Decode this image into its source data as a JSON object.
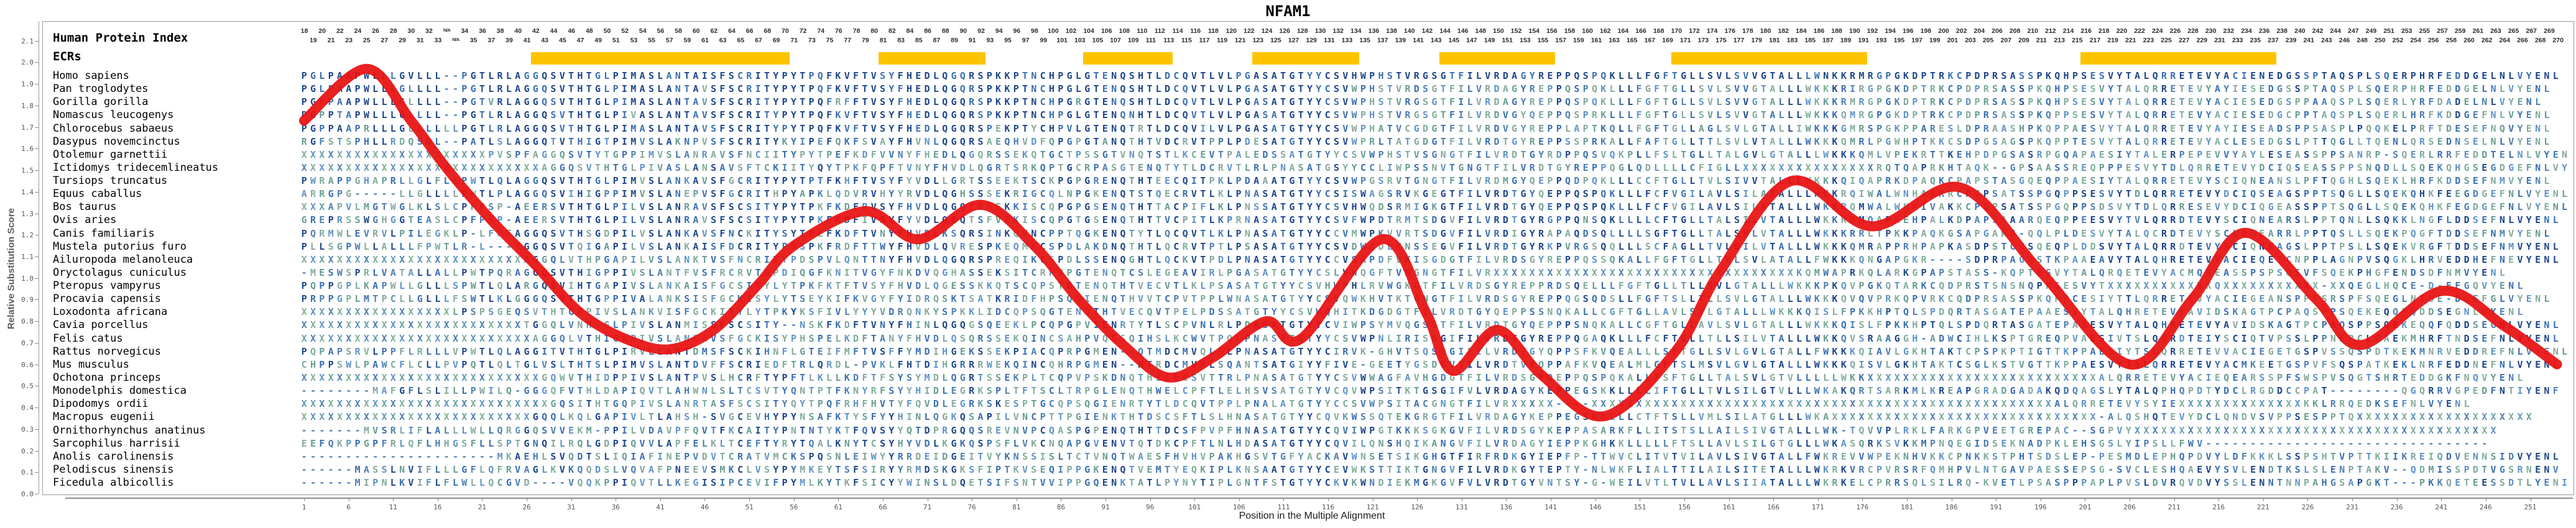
{
  "title": "NFAM1",
  "y_axis": {
    "label": "Relative Substitution Score",
    "min": 0.0,
    "max": 2.1,
    "step": 0.1,
    "tick_labels": [
      "0.0",
      "0.1",
      "0.2",
      "0.3",
      "0.4",
      "0.5",
      "0.6",
      "0.7",
      "0.8",
      "0.9",
      "1.0",
      "1.1",
      "1.2",
      "1.3",
      "1.4",
      "1.5",
      "1.6",
      "1.7",
      "1.8",
      "1.9",
      "2.0",
      "2.1"
    ]
  },
  "x_axis": {
    "label": "Position in the Multiple Alignment",
    "tick_start": 1,
    "tick_step": 5,
    "tick_end": 251
  },
  "left_panel": {
    "title": "Human Protein Index",
    "subtitle": "ECRs",
    "species": [
      "Homo sapiens",
      "Pan troglodytes",
      "Gorilla gorilla",
      "Nomascus leucogenys",
      "Chlorocebus sabaeus",
      "Dasypus novemcinctus",
      "Otolemur garnettii",
      "Ictidomys tridecemlineatus",
      "Tursiops truncatus",
      "Equus caballus",
      "Bos taurus",
      "Ovis aries",
      "Canis familiaris",
      "Mustela putorius furo",
      "Ailuropoda melanoleuca",
      "Oryctolagus cuniculus",
      "Pteropus vampyrus",
      "Procavia capensis",
      "Loxodonta africana",
      "Cavia porcellus",
      "Felis catus",
      "Rattus norvegicus",
      "Mus musculus",
      "Ochotona princeps",
      "Monodelphis domestica",
      "Dipodomys ordii",
      "Macropus eugenii",
      "Ornithorhynchus anatinus",
      "Sarcophilus harrisii",
      "Anolis carolinensis",
      "Pelodiscus sinensis",
      "Ficedula albicollis"
    ]
  },
  "header_numbers": {
    "first": 18,
    "na_after": 33,
    "na_label": "N/A",
    "na_count": 2,
    "skip": 245,
    "last": 270
  },
  "ecr_bars": {
    "color": "#FCC400",
    "col_ranges": [
      [
        27,
        55
      ],
      [
        66,
        77
      ],
      [
        89,
        98
      ],
      [
        108,
        119
      ],
      [
        129,
        141
      ],
      [
        155,
        176
      ],
      [
        201,
        222
      ]
    ]
  },
  "alignment": {
    "sequences": [
      "PGLPAAPWLLLGVLLL--PGTLRLAGGQSVTHTGLPIMASLANTAISFSCRITYPYTPQFKVFTVSYFHEDLQGQRSPKKPTNCHPGLGTENQSHTLDCQVTLVLPGASATGTYYCSVHWPHSTVRGSGTFILVRDAGYREPPQSPQKLLLFGFTGLLSVLSVVGTALLLWNKKRMRGPGKDPTRKCPDPRSASSPKQHPSESVYTALQRRETEVYACIENEDGSSPTAQSPLSQERPHRFEDDGELNLVYENL",
      "PGLPAAPWLLLGLLLL--PGTLRLAGGQSVTHTGLPIMASLANTAVSFSCRITYPYTPQFKVFTVSYFHEDLQGQRSPKKPTNCHPGLGTENQSHTLDCQVTLVLPGASATGTYYCSVWPHSTVRDSGTFILVRDAGYREPPQSPQKLLLFGFTGLLSVLSVVGTALLLWKKKRIRGPGKDPTRKCPDPRSASSPKQHPSESVYTALQRRETEVYAYIESEDGSSPTAQSPLSQERPHRFEDDGELNLVYENL",
      "PGPPAAPWLLLGLLLL--PGTVRLAGGQSVTHTGLPIMASLANTAVSFSCRITYPYTPQFRFFTVSYFHEDLQGQRSPKKPTNCHPGRGTENQSHTLDCQVTLVLPGASATGTYYCSVWPHSTVRGSGTFILVRDAGYREPPQSPQKLLLFGFTGLLSVLSVVGTALLLWKKKRMRGPGKDPTRKCPDPRSASSPKQHPSESVYTALQRRETEVYACIESEDGSPPAAQSPLSQERLYRFDADELNLVYENL",
      "PGPPTAPWLLLGLLLL--PGTLRLAGGQSVTHTGLPIVASLANTAVSFSCRITYPYTPQFKVFTVSYFHEDLQGQRSPKKPTNCHPGLGTENQNHTLDCQVTLVLPGASATGTYYCSVWPHSTVRGSGTFILVRDVGYQEPPQSPRKLLLFGFTGLLSVLSVVGTALLLWKKKQMRGPGKDPTRKCPDPRSASSPKQPPSESVYTALQRRETEVYACIESEDGCPPTAQSPLSQERLHRFKDDGEFNLVYENL",
      "PGPPAAPRLLLGLLLLLLPGTLRLAGGQSVTHTGLPIMASLANTAVSFSCRITYPYTPQFKVFTVSYFHEDLQGQRSPEKPTYCHPVLGTENQTRTLDCQVILVLPGASATGTYYCSVWPHATVCGDGTFILVRDVGYREPPLAPTKQLLFGFTGLLAGLSVLGTALLIWKKKGMRSPGKPPARESLDPRAASHPKQPPAESVYTALQRRETEVYAYIESEADSPPSASPLPQQKELPRFTDESEFNQVYENL",
      "RGFSTSPHLLRDQSDL--PATLSLAGGQTVTHIGTPIMVSLAKNPVSFSCRITYKYIPEFQKFSVAYFHVNLQGQRSAEQHVDFQPGPGTANQTHTVDCRVTPPLPDESATGTYYCSVWPRLTATGDGTFILVRDTGYREPPSSPRKALLFAFTGLLTTLSVLVTALLLWKKKQMRLPGWHPTKKCSDPGSAGSPKQPPTESVYTALQRRETEVYACLESEDGSLPTTQGLLTQENLQRSEDNSELNLVYENL",
      "XXXXXXXXXXXXXXXXXXXXXPVSPFAGGQSVTYTGPPIMVSLANRAVSFNCIITYPYTPEFKDFVVNYFHEDLQGQRSSEKQTGCTPSSGTVNQTSTLKCEVTPALEDSSATGTYYCSVWPHSTVSGNGTFILVRDTGYRDPPQSVQKPLLFSLTGLLTALGVLGTALLLWKKKQMLVPEKRTTKEHPDPGSASRPGQAPAESIYTALERPEPEVVYAYLESEASSPPSANRP-SQERLRRFEDDTELNLVYENL",
      "XXXXXXXXXXXXXXXXXXXXXXXXXXXAGGQSVTHTGLPIVASLANSAVSFTCKIITYQYTPKFQPFTVNYFHVDLQGRTSRKQPTGCRPASGTENQTYTLDCRVTLRLPNASATGSYYCCLIWPSSNVTGNGTFILVRDTGYREPPQGLQDLLLLCFIGLLXXXXXXXXXXXXXXXRQTQAPRKHTAQK--GPSAASSREQPPPESVYTDLQRRETEVYDCIQSEASSPPSNQDLLSQEKQHGSEGDGEFNLVYENL",
      "PWRAPPGHAPRLLGLFLLPWTLQLAGGQSVTHTGLPIMVSLANKAVSFGCRITYPYTPTFKHFTVSYFYVDLLGRTSSEEKTSCKPGPGRENQTHTEECQITPKLPDAAATGTYYCSVWPGSRVTGNGTFILVRDMGYQEPPQDPQKLLLCCFTGLLTVLSIVVTALLLWKKKQIQAPRKDPAQKCPAPSTASGQEQPPAESIYTALQRRETEVYSCIQNEANSLPFTQGHLSQEKLHRFKDDSEFNMVYENL",
      "ARRGPG-----LLGLLLLPWTLPLAGGQSVIHIGPPIMVSLANEPVSFGCRITHPYAPKLQDVRVHYYRVDLQGHSSSEKRIGCQLNPGKENQTSTQECRVTLKLPNASATGTYYCSISWAGSRVKGEGTFILVRDTGYQEPPQSPQKLLLFCFVGILAVLSILATALLLWKKRQIWALWNHAAKRCPGPSATSSPGQPPSESVYTDLQRRETEVYDCIQSEAGSPPTSQGLLSQEKQHKFEEGDGEFNLVYENL",
      "XXXAPVLMGTWGLKLSLCPFPSP-AEERSVTHTGLPILVSLANRAVSFSCSITYPYTPKFKDFRVSYFHVDLQGQTSSEKKISCQPGPGSENQTHTTACPIFLKLPNSSATGTYYCSVHWQDSRMIGKGTFILVRDTGYQEPPQSPQKLLLFCFVGILAVLSILATALLLWKKRQMWALWNKIVAKKCPGPSATSSPGQPPSDSVYTDLQRRESEVYDCIQGEASSPPTSQGLLSQEKQHKFEGDGEFNLVYENL",
      "GREPRSSWGHGGTEASLCPFPSP-AEERSVTHTGLPILVSLANRAVSFSCSITYPYTPKFKDFIVSYFYVDLQGQTSFVEKISCQPGTGSENQTHTTVCPITLKPRNASATGTYYCSVFWPDTRMTSDGVFILVRDTGYRGPPQNSQKLLLLCFTGLLTALSILVTALLLWKKRQMQAPREHPALKDPAPSAAARQEQPPEESVYTVLQRRDTEVYSCIQNEARSLPPTQNLLSQKKLNGFLDDSEFNLVYENL",
      "PQRMWLEVRVLPILEGKLP-LFPFAGGQSVTHSGDPILVSLANKAVSFNCKITYSYTPEFKDFTVNYFHVDLKSQRSINKQVNCPPTQGKENQTYTLQCQVTLKLPNASATGTYYCCVMWPKVVRTSDGVFILVRDIGYRAPAQDSQLLLLSGFTGLLTALSVLVTALLLWKKKRRLTPKKPAQKGSAPGARG-QQLPLDESVYTALQCRDTEVYSCLQNEARRLPPTQSLLSQEKPQGFTDDSEFNMVYENL",
      "PLLSGPWLLALLLFPWTLR-L---TGGQSVTQIGAPILVSLANKAISFDCRITYPDSPKFRDFTTWYFHVDLQVRESPKEQMKCSPDLAKDNQTHTLQCRVTPTLPSASATGTYYCSVDWQDLKNSSEGVFILVRDTGYRKPVRGSQQLLLSCFAGLLTVLSILVTALLLWKKKQMRAPPRHPAPKASDPSTGHSQEQPLDDSVYTALQRRDTEVYSCIQNKAGSLPPTPSLLSQEKVRGFTDDSEFNMVYENL",
      "XXXXXXXXXXXXXXXXXXXXXXXXXAGGQLVTHPGAPILVSLANKTVSFNCRITYPDSPVLQNTTNYFHVDLQGQRSPREQIKCSPDLSSENQGHTLQCKVTPDLPNASATGTYYCCVSAPDFVKISGDGTFILVRDSGYREPPQSSQKALLFGFTGLLTVLSVLATALLFWKKKQNGAPGKR----SDPRPAGASTKPAAEAVYTALQHRETEVYACIEQETCNPPLAGNPVSQGKLHRVEDDHEFNEVYENL",
      "-MESWSPRLVATALLALLPWTPQRAGGQSVTHIGPPIVSLANTFVSFRCRVTGPDIQGFKNITVGYFNKDVQGHASSEKSITCRPVPGTENQTCSLEGEAVIRLPGASATGTYYCSLVWQGFTVNGNGTFILVRXXXXXXXXXXXXXXXXXXXXXXXXXXXXXXXXXXKQMWAPRKQLARKGPAPSTASS-KQPTESVYTALQRQETEVYACMQNEASSPSPSQSVFSQEKPHGFENDSDFNMVYENL",
      "PQPPGPLKAPWLLGLLLSPWTLQLARGQSVIHTGAPIVSLANKAISFGCSITYLYTPKFKTFTVSYFHVDLQGESSKKQTSCQPSTGTENQTHTVECVTLKLPSASATGTYYCSVHWPHLRVWGKGTFILVRDSGYREPPRDSQELLLFGFTGLLTLLSVLGTALLLWKKKPKQVPGKQTARKCQDPRSTSNSNQPPSESVYTXXXXXXXXXXXKQXXXXXXXXXXX-XXQEGLHQCE-D-EFGQVYENL",
      "PRPPGPLMTPCLLGLLLFSWTLKLGGGQSVTHTGPPIVALANKSISFGCKISYLYTSEYKIFKVGYFYIDRQSKTSATKRIDFHPSQGIENQTHVVTCPVTPPLWNASATGTYYCSVQWKHVTKTGNGTFILVRDSGYREPPQGSQDSLLFGFTSLLTLLSVLGTALLLWKKKQVQVPRKQPVRKCQDPRSASSPKQPPCESIYTTLQRRETEVYACIEGEANSPPFSRSPFSQEGLNISE-DGEFGLVYENL",
      "XXXXXXXXXXXXXXXXXLPSPSGEQSVTHTGPPIVSLANKVISFGCKITYLYTPKYKSFIVLYYYVDRQNKYSPKKLIDCQPSQGTENQTHTVECQVTPELPDSSATGTYYCSVWQHITKDGDGTFILVRDTGYQEPPSSNQKALLCGFTGLLAVLSVLGTALLLWKKKQISLFPKKHPTQLSPDQRTASGATEPAAESVYTALQHRETEVYAVIDSKAGTPCPAQSPPSQEKEQQFQDDSEGNLVYENL",
      "XXXXXXXXXXXXXXXXXXXXXXXXXTGGQLVNHTGLPIVSLANMISSFSCSITY--NSKFKDFTVNYFHINLQGQGSQEEKLPCQPGPVIENRTYTLSCPVNLRLPDASATGTYYCVIWPSYMVQGSGTFILVRDTGYQEPPPSNQKALLCGFTGLLAVLSVLGTALLLWKKKQISLFPKKHPTQLSPDQRTASGATEPAAESVYTALQHRETEVYAVIDSKAGTPCPAQSPPSQEKEQQFQDDSEGNLVYENL",
      "XXXXXXXXXXXXXXXXXXXXXXXXXXAGGQLVTHIGAPIVSLANEAVSFGCKISYPHSPELKDFTANYFHVDLQSQRSSEKQINCSAHPVQESQIHSLKCWVTPQLPNASATGTYYCSVWPNLIRISKGIFILVRDTGYREPPQGAQKLLLFCFTGLLTLLSILVTALLLWKKQVSRAAGGH-ADWCIHLKSPTGREQPVAESIVTSLQGRDTEIYSCIQTVPSSLPPNEPCLPAEKMHRFTNDSEFNLVYENL",
      "PQPAPSRVLPPFLRLLLVPWTLQLAGGITVTHTGLPIRVLLANTDMSFSCKIHNFLGTEIFMFTVSFFYMDIHGEKSSEKPIACQPRPGMEN--QTMDCMVQLSLPNASATGTYYCIRVK-GHVTSQSDGIFILVRDTGYQPPSFKVQEALLLSFTGLLSVLGVLGTALLFWKKKQIAVLGKHTAKTCPSPKPTIGTTKPPAESIYTSLQRRETEVVACIEGETGSPVSSQSPDTKEKMNRVEDDREFNLVYENL",
      "CHPPSWLPAWCFLCLLPVPQTLQLTGLVSLTHTSLPIMVSLANTDVFFSCRIEDFTRLQRDL-PVKLFHTDIHGRRRWEKQINCQHRPGMEN--HTRDCMVKLSQANTSATGIYYFIVE-GEETYGSDGVVILVRDTVYQPPAFKVQEALMLGFTSLMSVLGVLGTALLLWKKKQISVLGKHTAKTCSGLKSTVGTTKPPAESVYTSLQRRETEVYACMKEETGSPVFSQSPATKEKLNRFEDDNEFNLVYENL",
      "XXXXXXXXXXXXXXXXXXXXXXXXXXXGQWVTHIDPPIVSLANTPVSLHCRFTYPFTLKLLKDFTFSYSYMDLQGRTSSEKPLTCQPVPSKDNQTHILECSVTTRLPNASATGTYYCSVWWAGFAVHGDGTFILVRDSGYQEPPQSPQKALLFSFTGLLTALSVLGTVLLLLLWKKXXXXXXXXXXXXXXXXXXXXXXXXXXALQRRETEVYACIEQEARSSPFSWSPVSQGTSHRTEDDGKFNQVYENL",
      "--------MAFGFLSLILLPWILQ-GGGQFVTHLDAPIQVTLAHWNLSLTCSVTYQNTPTFKNYRFSYYHIDLEGRKSPLTFTSCLTRPGLENQTHWELCPFTLELHSVSATGTYVCQVWPSITKTGSGIFVLVRDAGYKEPPEGSKKLLLLIFTGLLTVLSILGTVLLLWKAKQRTSARKMLKREAPGRADGADAKQDQAGSLYTALQPHQPDTYDCLRGDDCCPAT--------QGQRRVGPEDFNTIYENF",
      "XXXXXXXXXXXXXXXXXXXXXXXXXXXXGQSITHTGQPIVSLANRTASFSCSITYQYTPQFRHFHVTYFQVDLEGRKSKESPTGCQPSQGIENRTYTLDCQVTPPLPNALATGTYYCCSVWPSITACGNGTFILVRXXXXX----XXXXXXXXXXXXXXXXXXXXXXXXXXXXXXXXXXXXXXXXXXXXXXXXXXXXALQRRETEVYSYIEXXXXXXXXXXXXXXKKLRRQEDKSEFNLVYENL",
      "XXXXXXXXXXXXXXXXXXXXXXXXXXGQQLKQLGAPIVLTLAHSH-SVGCEVHYPYNSAFKTYSFYYHINLQGKQSAPILVNCPTTPGIENKTHTDSCSFTLSLHNASATGTYYCQVKWSSQTEKGRGTFILVRDAGYKEPPEGSKKLLLCTFTSLLVMLSILATGLLLWKAXXXXXXXXXXXXXXXXXXXXXXXXXXXXXX-ALQSHQTEVYDCLQNDVSVPPSESPPTQXXXXXXXXXXXXXXXXXXXX",
      "-------MVSRLIFLALLLWLLQRGGQSVVEKM-PPILVDAVPFQVTFKCAITYPNTNTYKTFQVSYYQTDPRGQQSREVNVPCQASPGPENQTHTTDCSFPVPFHNASATGTYYCQVIWPGTKKKSGKGVFILVRDSGYKEPPASARKFLLITSTSLLAILSIVGTALLLWK-TQVVPLRKLFARKGPVEETGREPAC--SGPVYXXXXXXXXXXXXXXXXXXXXXXXXXXXXXXXXXXXXXXXXX",
      "EEFQKPPGPFRLQFLHHGSFLLSPTGNQILRQLGDPIQVVLAPFELKLTCEFTYRYTQALKNYTCSYHYVDLKGKQSPSFLVKCNQAPGVENVTQTDKCPFTLNLHDASATGTYYCQVILQNSHQIKANGVFILVRDAGYIEPPKGHKKLLLLLFTSLLAVLSILGTGLLLWKASQRKSVKKMPNQEGIDSEKNADPKLEHSGSLYIPSLLFWV--------------------------------",
      "----------------------MKAEHLSVQDTSLIQIAFINEPVDVTCRATVMCKSPQSNLEIWYYRRDEIDGEITVYKNSSISLTCTVNQTWAESFHVHVPAKHGSVTGFYACKAVWNSETSIKGHGTFIRFRDKGYIEPFP-TTWVCLITVTVILAVLSIVGTALLFWKREVVWPEKNHVKKCPNKKSTPHTSDSLEP-PESMDLEPHQPDVYLDFKKKLSSPSHTVPTTKIIKREIQDVENNSIDVYENL",
      "------MASSLNVIFLLLGFLQFRVAGLKVKQQDSLVQVAFPNEEVSMKCLVSYPYMKEYTSFSIRYYRMDSKGKSFIPTKVSEQIPPGKENQTVEMTYEQKIPLKNSAATGTYYCEVWKSTTIKTGNGVFILVRDKGYTEPTY-NLWKFLIALTTILAILSITETALLLWKRKVRCPVRSRFQMHPVLNTGAVPAESSEPSG-SVCLESHQAEVYSVLENDTKSLSLENPTAKV--QDMISSPDTVGSRNENV",
      "------MIPNLKVIFLFLWLLQCGVD----VQQKPPIQVTLLKEGISIPCEVIFPYMLKYTKFSICYYWINSLDQETSIFSNTVVIPPGQENKTATLPYNYTIPLGNTFSTGTYYCKVKWNDIEKMGKGVFVLVRDTGYVNTSY-G-WEILVTLTVLLAVLSIIATALLLWKRKELCPRRSQLSILRQ-KVETLPSASPPPAPLPVSLDVRQVDVYSSLENNTNNPAHGSAPGKT---PKKQETEESSDTLYENI"
    ]
  },
  "chart_data": {
    "type": "line",
    "title": "NFAM1",
    "xlabel": "Position in the Multiple Alignment",
    "ylabel": "Relative Substitution Score",
    "xlim": [
      1,
      255
    ],
    "ylim": [
      0.0,
      2.1
    ],
    "series_name": "relative substitution score profile",
    "points": [
      [
        1,
        1.73
      ],
      [
        8,
        1.97
      ],
      [
        13,
        1.73
      ],
      [
        17,
        1.51
      ],
      [
        22,
        1.27
      ],
      [
        27,
        1.06
      ],
      [
        32,
        0.84
      ],
      [
        37,
        0.72
      ],
      [
        42,
        0.67
      ],
      [
        47,
        0.76
      ],
      [
        52,
        0.97
      ],
      [
        56,
        1.15
      ],
      [
        64,
        1.31
      ],
      [
        70,
        1.18
      ],
      [
        77,
        1.34
      ],
      [
        83,
        1.15
      ],
      [
        88,
        0.9
      ],
      [
        93,
        0.69
      ],
      [
        98,
        0.54
      ],
      [
        103,
        0.63
      ],
      [
        109,
        0.8
      ],
      [
        113,
        0.72
      ],
      [
        122,
        1.18
      ],
      [
        127,
        0.84
      ],
      [
        130,
        0.57
      ],
      [
        135,
        0.76
      ],
      [
        140,
        0.55
      ],
      [
        147,
        0.36
      ],
      [
        155,
        0.66
      ],
      [
        160,
        1.03
      ],
      [
        168,
        1.45
      ],
      [
        177,
        1.24
      ],
      [
        187,
        1.42
      ],
      [
        196,
        1.03
      ],
      [
        206,
        0.6
      ],
      [
        213,
        0.9
      ],
      [
        219,
        1.21
      ],
      [
        227,
        0.9
      ],
      [
        232,
        0.69
      ],
      [
        241,
        0.94
      ],
      [
        248,
        0.78
      ],
      [
        254,
        0.6
      ]
    ]
  },
  "colors": {
    "curve_red": "#E81010",
    "ecr_yellow": "#FCC400",
    "conserved_navy": "#1d4688",
    "alt_navy": "#3a6fae",
    "gap_dash": "#4a7ab5",
    "variant_palette": [
      "#3a6fae",
      "#679c95",
      "#7fae9c",
      "#5e93c5",
      "#86a79e",
      "#4e7fb0"
    ],
    "x_palette": [
      "#69a0a8",
      "#4e7fb0",
      "#7fae9c",
      "#5e93c5"
    ],
    "number_text": "#2b2b2b",
    "tick_text": "#555555",
    "axis_line": "#9a9a9a"
  }
}
